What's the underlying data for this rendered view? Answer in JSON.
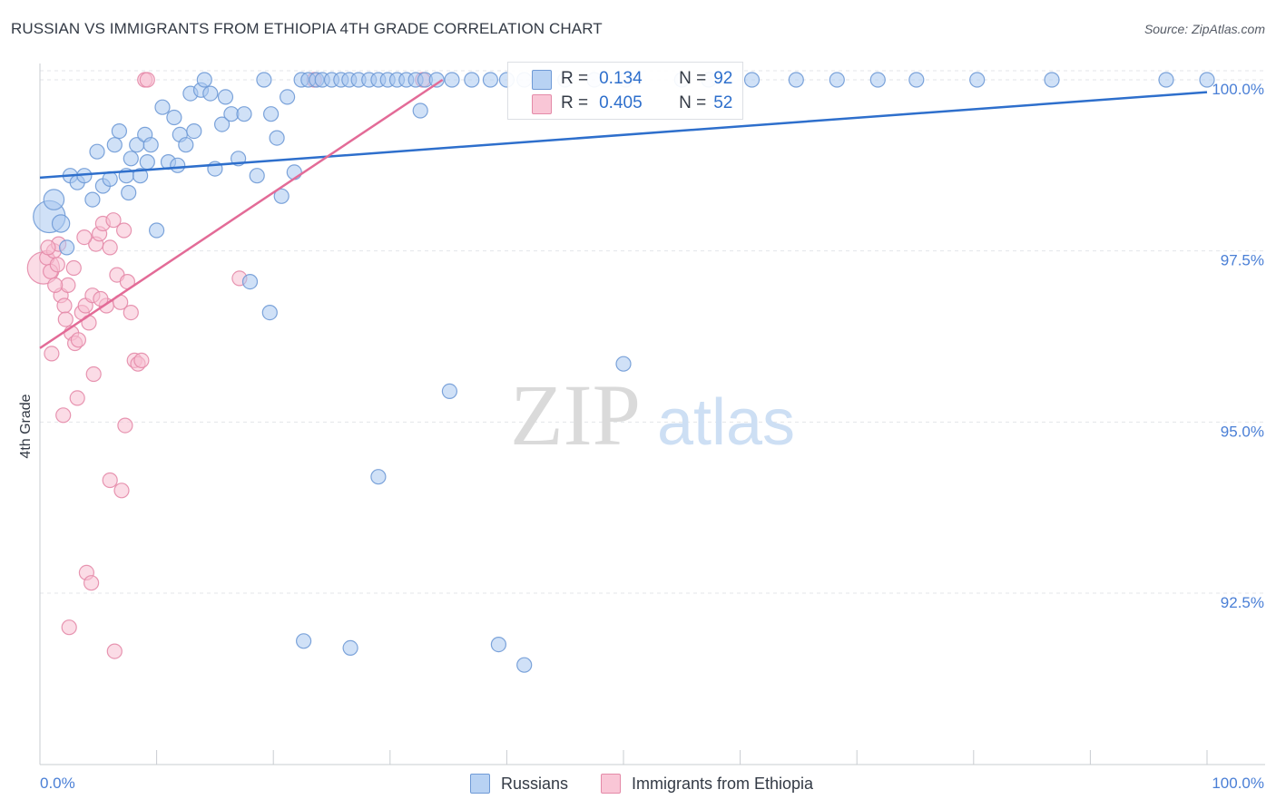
{
  "header": {
    "title": "RUSSIAN VS IMMIGRANTS FROM ETHIOPIA 4TH GRADE CORRELATION CHART",
    "source": "Source: ZipAtlas.com"
  },
  "watermark": {
    "zip": "ZIP",
    "atlas": "atlas"
  },
  "legend": {
    "russians": {
      "r_label": "R =",
      "r_value": "0.134",
      "n_label": "N =",
      "n_value": "92"
    },
    "ethiopia": {
      "r_label": "R =",
      "r_value": "0.405",
      "n_label": "N =",
      "n_value": "52"
    }
  },
  "bottom_legend": {
    "russians": "Russians",
    "ethiopia": "Immigrants from Ethiopia"
  },
  "colors": {
    "blue_fill": "#a9c8f0",
    "blue_stroke": "#6f9ad6",
    "blue_line": "#2e6fcc",
    "pink_fill": "#f7c0d2",
    "pink_stroke": "#e48aa8",
    "pink_line": "#e36b97",
    "tick_label": "#4a7fd6",
    "grid": "#e3e6ea"
  },
  "chart_data": {
    "type": "scatter",
    "title": "RUSSIAN VS IMMIGRANTS FROM ETHIOPIA 4TH GRADE CORRELATION CHART",
    "xlabel": "",
    "ylabel": "4th Grade",
    "xlim": [
      0,
      100
    ],
    "ylim": [
      90.2,
      100.35
    ],
    "x_tick_labels": [
      "0.0%",
      "100.0%"
    ],
    "y_ticks": [
      {
        "value": 100.0,
        "label": "100.0%"
      },
      {
        "value": 97.5,
        "label": "97.5%"
      },
      {
        "value": 95.0,
        "label": "95.0%"
      },
      {
        "value": 92.5,
        "label": "92.5%"
      }
    ],
    "grid": "horizontal dashed",
    "series": [
      {
        "name": "Russians",
        "r": 0.134,
        "n": 92,
        "trend": {
          "x": [
            0,
            100
          ],
          "y": [
            98.57,
            99.82
          ]
        },
        "points": [
          [
            0.8,
            98.0,
            2.2
          ],
          [
            1.2,
            98.25,
            1.4
          ],
          [
            1.8,
            97.9,
            1.2
          ],
          [
            2.3,
            97.55,
            1.0
          ],
          [
            2.6,
            98.6,
            1.0
          ],
          [
            3.2,
            98.5,
            1.0
          ],
          [
            3.8,
            98.6,
            1.0
          ],
          [
            4.5,
            98.25,
            1.0
          ],
          [
            4.9,
            98.95,
            1.0
          ],
          [
            5.4,
            98.45,
            1.0
          ],
          [
            6.0,
            98.55,
            1.0
          ],
          [
            6.4,
            99.05,
            1.0
          ],
          [
            6.8,
            99.25,
            1.0
          ],
          [
            7.4,
            98.6,
            1.0
          ],
          [
            7.8,
            98.85,
            1.0
          ],
          [
            8.3,
            99.05,
            1.0
          ],
          [
            8.6,
            98.6,
            1.0
          ],
          [
            9.0,
            99.2,
            1.0
          ],
          [
            9.5,
            99.05,
            1.0
          ],
          [
            10.0,
            97.8,
            1.0
          ],
          [
            10.5,
            99.6,
            1.0
          ],
          [
            11.0,
            98.8,
            1.0
          ],
          [
            11.5,
            99.45,
            1.0
          ],
          [
            12.0,
            99.2,
            1.0
          ],
          [
            12.5,
            99.05,
            1.0
          ],
          [
            12.9,
            99.8,
            1.0
          ],
          [
            13.2,
            99.25,
            1.0
          ],
          [
            13.8,
            99.85,
            1.0
          ],
          [
            14.1,
            100.0,
            1.0
          ],
          [
            14.6,
            99.8,
            1.0
          ],
          [
            15.0,
            98.7,
            1.0
          ],
          [
            15.6,
            99.35,
            1.0
          ],
          [
            15.9,
            99.75,
            1.0
          ],
          [
            16.4,
            99.5,
            1.0
          ],
          [
            17.0,
            98.85,
            1.0
          ],
          [
            17.5,
            99.5,
            1.0
          ],
          [
            18.0,
            97.05,
            1.0
          ],
          [
            18.6,
            98.6,
            1.0
          ],
          [
            19.2,
            100.0,
            1.0
          ],
          [
            19.8,
            99.5,
            1.0
          ],
          [
            20.3,
            99.15,
            1.0
          ],
          [
            20.7,
            98.3,
            1.0
          ],
          [
            21.2,
            99.75,
            1.0
          ],
          [
            21.8,
            98.65,
            1.0
          ],
          [
            22.4,
            100.0,
            1.0
          ],
          [
            23.0,
            100.0,
            1.0
          ],
          [
            23.7,
            100.0,
            1.0
          ],
          [
            24.2,
            100.0,
            1.0
          ],
          [
            25.0,
            100.0,
            1.0
          ],
          [
            25.8,
            100.0,
            1.0
          ],
          [
            26.5,
            100.0,
            1.0
          ],
          [
            27.3,
            100.0,
            1.0
          ],
          [
            28.2,
            100.0,
            1.0
          ],
          [
            29.0,
            100.0,
            1.0
          ],
          [
            29.8,
            100.0,
            1.0
          ],
          [
            30.6,
            100.0,
            1.0
          ],
          [
            31.4,
            100.0,
            1.0
          ],
          [
            32.2,
            100.0,
            1.0
          ],
          [
            33.0,
            100.0,
            1.0
          ],
          [
            32.6,
            99.55,
            1.0
          ],
          [
            34.0,
            100.0,
            1.0
          ],
          [
            35.3,
            100.0,
            1.0
          ],
          [
            37.0,
            100.0,
            1.0
          ],
          [
            38.6,
            100.0,
            1.0
          ],
          [
            40.0,
            100.0,
            1.0
          ],
          [
            41.5,
            100.0,
            1.0
          ],
          [
            43.2,
            100.0,
            1.0
          ],
          [
            45.0,
            100.0,
            1.0
          ],
          [
            47.5,
            100.0,
            1.0
          ],
          [
            50.2,
            100.0,
            1.0
          ],
          [
            55.0,
            100.0,
            1.0
          ],
          [
            57.3,
            100.0,
            1.0
          ],
          [
            61.0,
            100.0,
            1.0
          ],
          [
            64.8,
            100.0,
            1.0
          ],
          [
            68.3,
            100.0,
            1.0
          ],
          [
            71.8,
            100.0,
            1.0
          ],
          [
            75.1,
            100.0,
            1.0
          ],
          [
            80.3,
            100.0,
            1.0
          ],
          [
            86.7,
            100.0,
            1.0
          ],
          [
            96.5,
            100.0,
            1.0
          ],
          [
            100.0,
            100.0,
            1.0
          ],
          [
            19.7,
            96.6,
            1.0
          ],
          [
            35.1,
            95.45,
            1.0
          ],
          [
            50.0,
            95.85,
            1.0
          ],
          [
            29.0,
            94.2,
            1.0
          ],
          [
            22.6,
            91.8,
            1.0
          ],
          [
            26.6,
            91.7,
            1.0
          ],
          [
            39.3,
            91.75,
            1.0
          ],
          [
            41.5,
            91.45,
            1.0
          ],
          [
            11.8,
            98.75,
            1.0
          ],
          [
            7.6,
            98.35,
            1.0
          ],
          [
            9.2,
            98.8,
            1.0
          ]
        ]
      },
      {
        "name": "Immigrants from Ethiopia",
        "r": 0.405,
        "n": 52,
        "trend": {
          "x": [
            0,
            34.5
          ],
          "y": [
            96.08,
            100.0
          ]
        },
        "points": [
          [
            0.3,
            97.25,
            2.2
          ],
          [
            0.6,
            97.4,
            1.0
          ],
          [
            0.9,
            97.2,
            1.0
          ],
          [
            1.2,
            97.5,
            1.0
          ],
          [
            1.5,
            97.3,
            1.0
          ],
          [
            1.8,
            96.85,
            1.0
          ],
          [
            2.1,
            96.7,
            1.0
          ],
          [
            2.4,
            97.0,
            1.0
          ],
          [
            2.7,
            96.3,
            1.0
          ],
          [
            3.0,
            96.15,
            1.0
          ],
          [
            3.3,
            96.2,
            1.0
          ],
          [
            3.6,
            96.6,
            1.0
          ],
          [
            3.9,
            96.7,
            1.0
          ],
          [
            4.2,
            96.45,
            1.0
          ],
          [
            4.5,
            96.85,
            1.0
          ],
          [
            4.8,
            97.6,
            1.0
          ],
          [
            5.1,
            97.75,
            1.0
          ],
          [
            5.4,
            97.9,
            1.0
          ],
          [
            5.7,
            96.7,
            1.0
          ],
          [
            6.0,
            97.55,
            1.0
          ],
          [
            6.3,
            97.95,
            1.0
          ],
          [
            6.6,
            97.15,
            1.0
          ],
          [
            6.9,
            96.75,
            1.0
          ],
          [
            7.2,
            97.8,
            1.0
          ],
          [
            7.5,
            97.05,
            1.0
          ],
          [
            7.8,
            96.6,
            1.0
          ],
          [
            8.1,
            95.9,
            1.0
          ],
          [
            8.4,
            95.85,
            1.0
          ],
          [
            8.7,
            95.9,
            1.0
          ],
          [
            9.0,
            100.0,
            1.0
          ],
          [
            9.2,
            100.0,
            1.0
          ],
          [
            1.0,
            96.0,
            1.0
          ],
          [
            2.0,
            95.1,
            1.0
          ],
          [
            3.2,
            95.35,
            1.0
          ],
          [
            4.6,
            95.7,
            1.0
          ],
          [
            7.3,
            94.95,
            1.0
          ],
          [
            6.0,
            94.15,
            1.0
          ],
          [
            7.0,
            94.0,
            1.0
          ],
          [
            4.0,
            92.8,
            1.0
          ],
          [
            4.4,
            92.65,
            1.0
          ],
          [
            2.5,
            92.0,
            1.0
          ],
          [
            6.4,
            91.65,
            1.0
          ],
          [
            17.1,
            97.1,
            1.0
          ],
          [
            23.5,
            100.0,
            1.0
          ],
          [
            32.8,
            100.0,
            1.0
          ],
          [
            1.6,
            97.6,
            1.0
          ],
          [
            2.9,
            97.25,
            1.0
          ],
          [
            3.8,
            97.7,
            1.0
          ],
          [
            5.2,
            96.8,
            1.0
          ],
          [
            1.3,
            97.0,
            1.0
          ],
          [
            2.2,
            96.5,
            1.0
          ],
          [
            0.7,
            97.55,
            1.0
          ]
        ]
      }
    ]
  }
}
